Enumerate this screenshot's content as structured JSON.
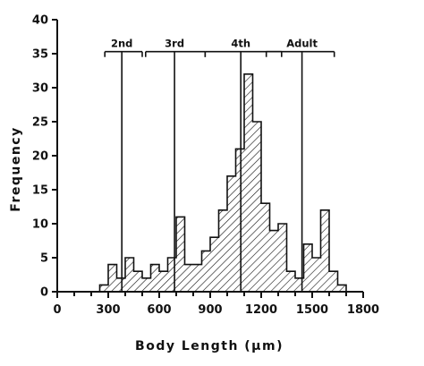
{
  "chart_data": {
    "type": "bar",
    "subtype": "histogram",
    "title": "",
    "xlabel": "Body Length (μm)",
    "ylabel": "Frequency",
    "xlim": [
      0,
      1800
    ],
    "ylim": [
      0,
      40
    ],
    "x_ticks": [
      0,
      300,
      600,
      900,
      1200,
      1500,
      1800
    ],
    "x_minor_step": 100,
    "y_ticks": [
      0,
      5,
      10,
      15,
      20,
      25,
      30,
      35,
      40
    ],
    "bin_width": 50,
    "bin_start": 250,
    "values": [
      1,
      4,
      2,
      5,
      3,
      2,
      4,
      3,
      5,
      11,
      4,
      4,
      6,
      8,
      12,
      17,
      21,
      32,
      25,
      13,
      9,
      10,
      3,
      2,
      7,
      5,
      12,
      3,
      1
    ],
    "fill": "diagonal-hatch",
    "bar_color": "#111111",
    "grid": false,
    "legend": "none",
    "annotations": [
      {
        "label": "2nd",
        "range": [
          280,
          500
        ],
        "mean": 380
      },
      {
        "label": "3rd",
        "range": [
          520,
          870
        ],
        "mean": 690
      },
      {
        "label": "4th",
        "range": [
          870,
          1320
        ],
        "mean": 1080
      },
      {
        "label": "Adult",
        "range": [
          1230,
          1630
        ],
        "mean": 1440
      }
    ]
  }
}
